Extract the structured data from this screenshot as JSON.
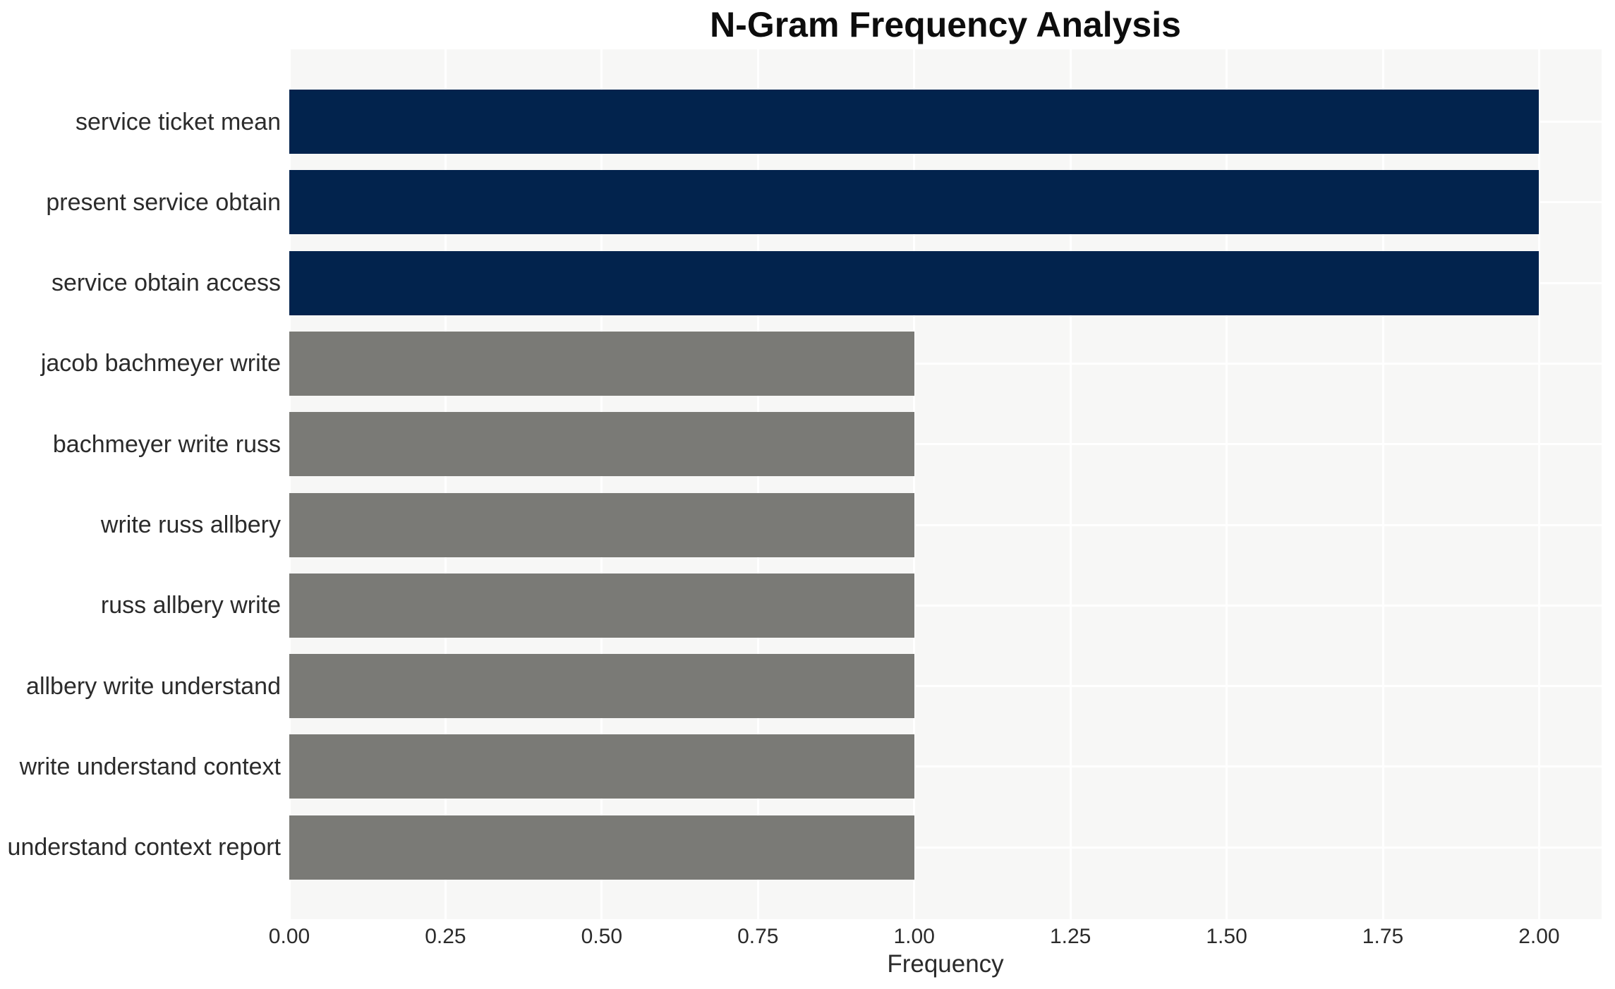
{
  "figure": {
    "title": "N-Gram Frequency Analysis",
    "xlabel": "Frequency"
  },
  "chart_data": {
    "type": "bar",
    "orientation": "horizontal",
    "title": "N-Gram Frequency Analysis",
    "xlabel": "Frequency",
    "ylabel": "",
    "categories": [
      "service ticket mean",
      "present service obtain",
      "service obtain access",
      "jacob bachmeyer write",
      "bachmeyer write russ",
      "write russ allbery",
      "russ allbery write",
      "allbery write understand",
      "write understand context",
      "understand context report"
    ],
    "values": [
      2,
      2,
      2,
      1,
      1,
      1,
      1,
      1,
      1,
      1
    ],
    "bar_colors": [
      "#02234d",
      "#02234d",
      "#02234d",
      "#7a7a76",
      "#7a7a76",
      "#7a7a76",
      "#7a7a76",
      "#7a7a76",
      "#7a7a76",
      "#7a7a76"
    ],
    "xlim": [
      0,
      2.1
    ],
    "xtick_values": [
      0.0,
      0.25,
      0.5,
      0.75,
      1.0,
      1.25,
      1.5,
      1.75,
      2.0
    ],
    "xtick_labels": [
      "0.00",
      "0.25",
      "0.50",
      "0.75",
      "1.00",
      "1.25",
      "1.50",
      "1.75",
      "2.00"
    ],
    "grid": true,
    "legend": null,
    "colors": {
      "high_freq_bar": "#02234d",
      "low_freq_bar": "#7a7a76",
      "plot_background": "#f7f7f6",
      "gridline": "#ffffff",
      "text": "#2b2b2b",
      "title_text": "#0d0d0d",
      "figure_background": "#ffffff"
    }
  }
}
